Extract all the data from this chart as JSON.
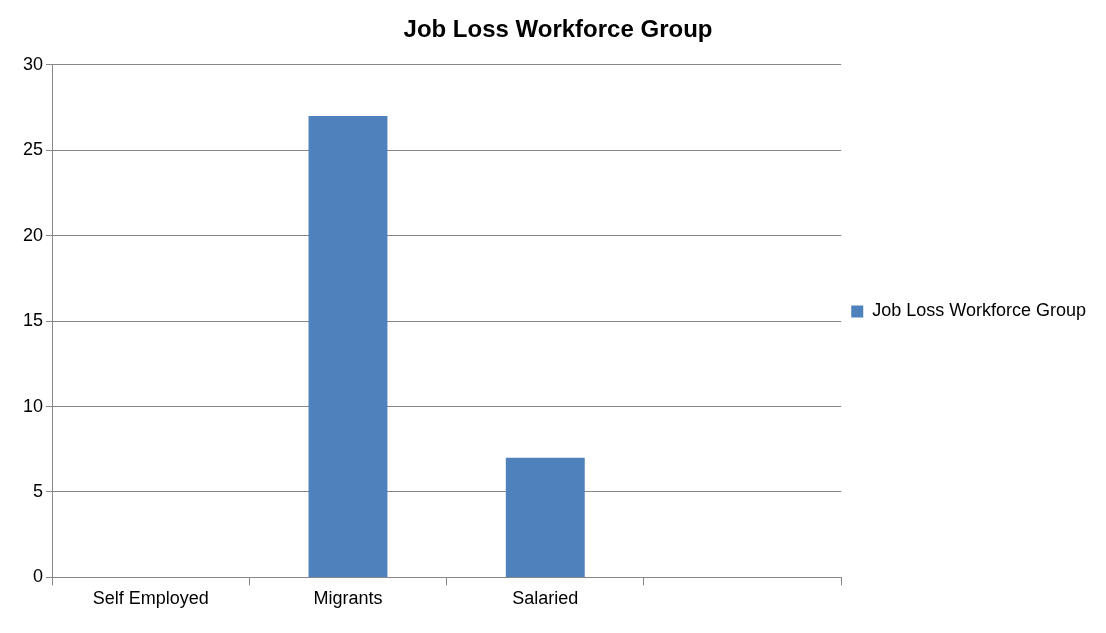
{
  "chart_data": {
    "type": "bar",
    "title": "Job Loss Workforce Group",
    "categories": [
      "Self Employed",
      "Migrants",
      "Salaried",
      null
    ],
    "series": [
      {
        "name": "Job Loss Workforce Group",
        "color": "#4f81bd",
        "values": [
          0,
          27,
          7,
          null
        ]
      }
    ],
    "ylim": [
      0,
      30
    ],
    "yticks": [
      0,
      5,
      10,
      15,
      20,
      25,
      30
    ],
    "grid": "y",
    "legend": "right"
  }
}
